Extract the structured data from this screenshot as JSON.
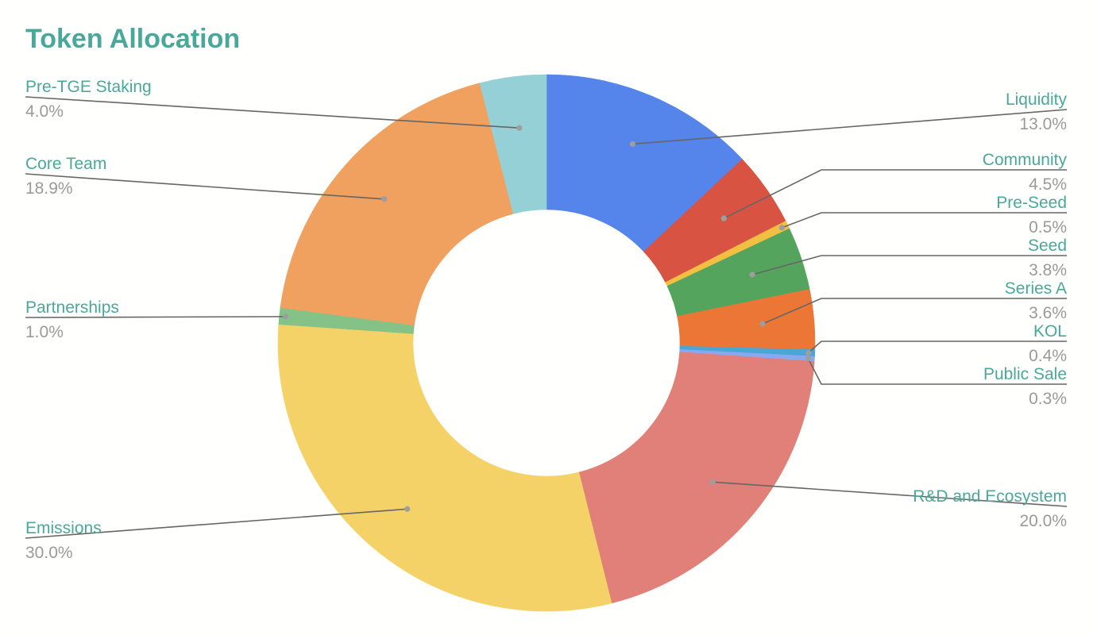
{
  "chart_data": {
    "type": "pie",
    "donut": true,
    "title": "Token Allocation",
    "legend": "none",
    "colors": {
      "title": "#4aa89a",
      "label_name": "#4aa89a",
      "label_value": "#9a9a9a",
      "leader_line": "#666666",
      "leader_dot": "#9e9e9e",
      "background": "#fffffd"
    },
    "slices": [
      {
        "name": "Liquidity",
        "value": 13.0,
        "label": "13.0%",
        "color": "#5584ea"
      },
      {
        "name": "Community",
        "value": 4.5,
        "label": "4.5%",
        "color": "#d95343"
      },
      {
        "name": "Pre-Seed",
        "value": 0.5,
        "label": "0.5%",
        "color": "#f3bf42"
      },
      {
        "name": "Seed",
        "value": 3.8,
        "label": "3.8%",
        "color": "#55a45e"
      },
      {
        "name": "Series A",
        "value": 3.6,
        "label": "3.6%",
        "color": "#ec7636"
      },
      {
        "name": "KOL",
        "value": 0.4,
        "label": "0.4%",
        "color": "#4aa7d3"
      },
      {
        "name": "Public Sale",
        "value": 0.3,
        "label": "0.3%",
        "color": "#8aa8f2"
      },
      {
        "name": "R&D and Ecosystem",
        "value": 20.0,
        "label": "20.0%",
        "color": "#e08078"
      },
      {
        "name": "Emissions",
        "value": 30.0,
        "label": "30.0%",
        "color": "#f4d268"
      },
      {
        "name": "Partnerships",
        "value": 1.0,
        "label": "1.0%",
        "color": "#85c287"
      },
      {
        "name": "Core Team",
        "value": 18.9,
        "label": "18.9%",
        "color": "#f0a05f"
      },
      {
        "name": "Pre-TGE Staking",
        "value": 4.0,
        "label": "4.0%",
        "color": "#96d0d7"
      }
    ]
  }
}
